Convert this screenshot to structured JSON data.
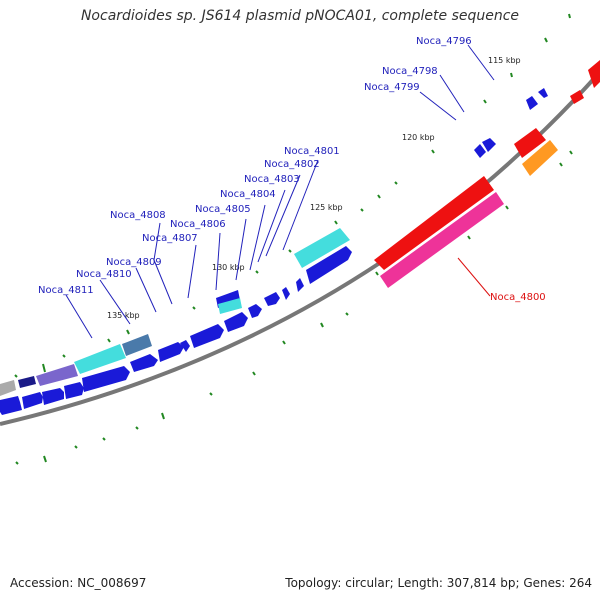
{
  "title": "Nocardioides sp. JS614 plasmid pNOCA01, complete sequence",
  "footer": {
    "accession": "Accession: NC_008697",
    "summary": "Topology: circular; Length: 307,814 bp; Genes: 264"
  },
  "colors": {
    "background": "#ffffff",
    "backbone": "#777777",
    "forward_cds": "#1a1ad8",
    "rna": "#ee1111",
    "label_blue": "#2222bb",
    "label_red": "#dd1111",
    "tick": "#228822"
  },
  "kbp_markers": [
    "115 kbp",
    "120 kbp",
    "125 kbp",
    "130 kbp",
    "135 kbp"
  ],
  "gene_labels": [
    {
      "name": "Noca_4796",
      "color": "blue"
    },
    {
      "name": "Noca_4798",
      "color": "blue"
    },
    {
      "name": "Noca_4799",
      "color": "blue"
    },
    {
      "name": "Noca_4801",
      "color": "blue"
    },
    {
      "name": "Noca_4802",
      "color": "blue"
    },
    {
      "name": "Noca_4803",
      "color": "blue"
    },
    {
      "name": "Noca_4804",
      "color": "blue"
    },
    {
      "name": "Noca_4805",
      "color": "blue"
    },
    {
      "name": "Noca_4806",
      "color": "blue"
    },
    {
      "name": "Noca_4807",
      "color": "blue"
    },
    {
      "name": "Noca_4808",
      "color": "blue"
    },
    {
      "name": "Noca_4809",
      "color": "blue"
    },
    {
      "name": "Noca_4810",
      "color": "blue"
    },
    {
      "name": "Noca_4811",
      "color": "blue"
    },
    {
      "name": "Noca_4800",
      "color": "red"
    }
  ]
}
